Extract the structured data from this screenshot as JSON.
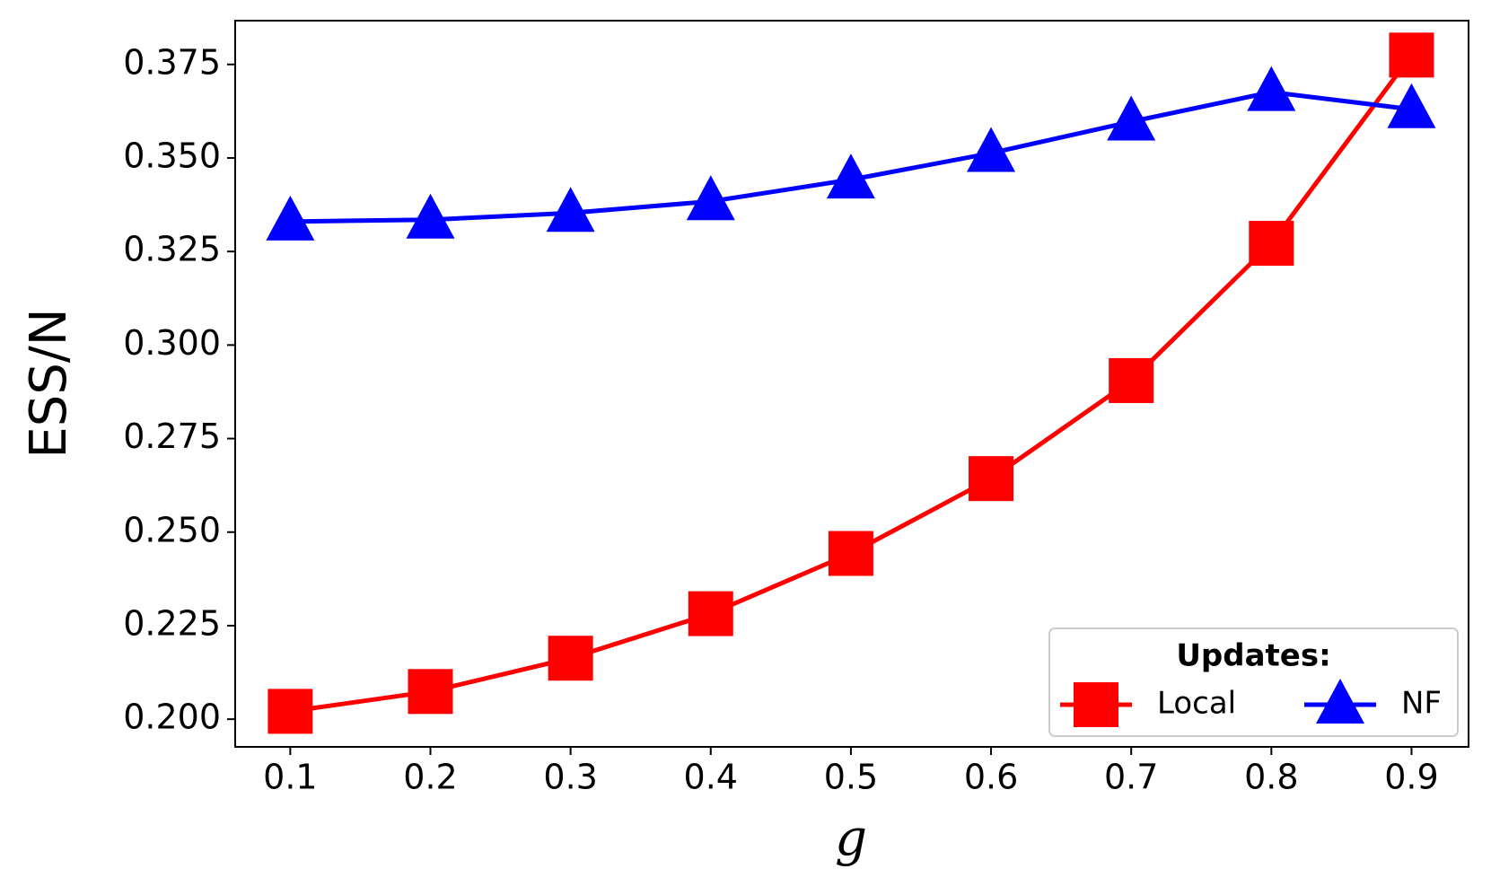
{
  "chart_data": {
    "type": "line",
    "x": [
      0.1,
      0.2,
      0.3,
      0.4,
      0.5,
      0.6,
      0.7,
      0.8,
      0.9
    ],
    "x_label": "g",
    "y_label": "ESS/N",
    "series": [
      {
        "name": "Local",
        "color": "#ff0000",
        "marker": "square",
        "values": [
          0.2021,
          0.2074,
          0.2163,
          0.2282,
          0.2443,
          0.2643,
          0.2905,
          0.3272,
          0.3775
        ]
      },
      {
        "name": "NF",
        "color": "#0000ff",
        "marker": "triangle",
        "values": [
          0.333,
          0.3335,
          0.3353,
          0.3384,
          0.3442,
          0.3513,
          0.3597,
          0.3676,
          0.363
        ]
      }
    ],
    "legend_title": "Updates:",
    "legend_position": "lower right",
    "xlim": [
      0.0607,
      0.9407
    ],
    "ylim": [
      0.1926,
      0.3867
    ],
    "xticks": [
      0.1,
      0.2,
      0.3,
      0.4,
      0.5,
      0.6,
      0.7,
      0.8,
      0.9
    ],
    "yticks": [
      {
        "value": 0.2,
        "label": "0.200"
      },
      0.225,
      {
        "value": 0.25,
        "label": "0.250"
      },
      0.275,
      {
        "value": 0.3,
        "label": "0.300"
      },
      0.325,
      {
        "value": 0.35,
        "label": "0.350"
      },
      0.375
    ],
    "grid": false
  }
}
